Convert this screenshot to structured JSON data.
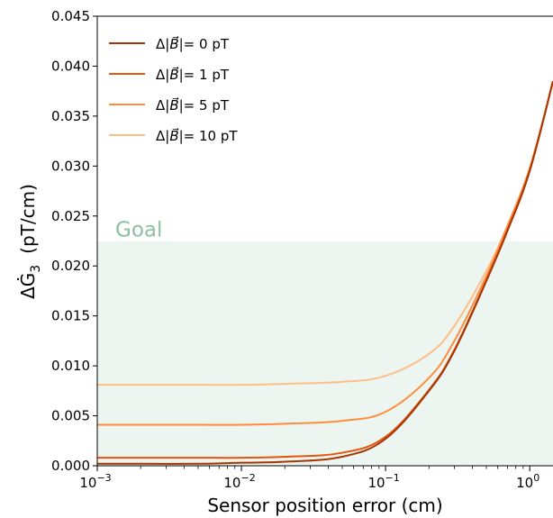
{
  "chart_data": {
    "type": "line",
    "title": "",
    "xlabel": "Sensor position error (cm)",
    "ylabel_main": "ΔĠ",
    "ylabel_sub": "3",
    "ylabel_unit": "(pT/cm)",
    "xscale": "log",
    "xlim": [
      0.001,
      1.45
    ],
    "ylim": [
      0,
      0.045
    ],
    "x_ticks": [
      {
        "value": 0.001,
        "base": "10",
        "exp": "−3"
      },
      {
        "value": 0.01,
        "base": "10",
        "exp": "−2"
      },
      {
        "value": 0.1,
        "base": "10",
        "exp": "−1"
      },
      {
        "value": 1,
        "base": "10",
        "exp": "0"
      }
    ],
    "y_ticks": [
      "0.000",
      "0.005",
      "0.010",
      "0.015",
      "0.020",
      "0.025",
      "0.030",
      "0.035",
      "0.040",
      "0.045"
    ],
    "y_tick_values": [
      0,
      0.005,
      0.01,
      0.015,
      0.02,
      0.025,
      0.03,
      0.035,
      0.04,
      0.045
    ],
    "goal": {
      "label": "Goal",
      "y_max": 0.0225,
      "color": "#2e8b57"
    },
    "legend_position": "upper-left",
    "grid": false,
    "series": [
      {
        "name": "Δ|B⃗|= 0 pT",
        "legend_prefix": "Δ|",
        "legend_symbol": "B⃗",
        "legend_suffix": "|= 0 pT",
        "color": "#a63603",
        "x": [
          0.001,
          0.002,
          0.005,
          0.01,
          0.02,
          0.05,
          0.1,
          0.2,
          0.3,
          0.5,
          0.7,
          1.0,
          1.45
        ],
        "y": [
          0.0002,
          0.0002,
          0.0002,
          0.0003,
          0.0004,
          0.0009,
          0.0027,
          0.0075,
          0.0115,
          0.0185,
          0.0235,
          0.0295,
          0.0385
        ]
      },
      {
        "name": "Δ|B⃗|= 1 pT",
        "legend_prefix": "Δ|",
        "legend_symbol": "B⃗",
        "legend_suffix": "|= 1 pT",
        "color": "#e6550d",
        "x": [
          0.001,
          0.002,
          0.005,
          0.01,
          0.02,
          0.05,
          0.1,
          0.2,
          0.3,
          0.5,
          0.7,
          1.0,
          1.45
        ],
        "y": [
          0.0008,
          0.0008,
          0.0008,
          0.0008,
          0.0009,
          0.0013,
          0.0029,
          0.0076,
          0.0116,
          0.0186,
          0.0236,
          0.0296,
          0.0385
        ]
      },
      {
        "name": "Δ|B⃗|= 5 pT",
        "legend_prefix": "Δ|",
        "legend_symbol": "B⃗",
        "legend_suffix": "|= 5 pT",
        "color": "#fd8d3c",
        "x": [
          0.001,
          0.002,
          0.005,
          0.01,
          0.02,
          0.05,
          0.1,
          0.2,
          0.3,
          0.5,
          0.7,
          1.0,
          1.45
        ],
        "y": [
          0.0041,
          0.0041,
          0.0041,
          0.0041,
          0.0042,
          0.0045,
          0.0054,
          0.0088,
          0.0125,
          0.019,
          0.024,
          0.0298,
          0.0385
        ]
      },
      {
        "name": "Δ|B⃗|= 10 pT",
        "legend_prefix": "Δ|",
        "legend_symbol": "B⃗",
        "legend_suffix": "|= 10 pT",
        "color": "#fdbe85",
        "x": [
          0.001,
          0.002,
          0.005,
          0.01,
          0.02,
          0.05,
          0.1,
          0.2,
          0.3,
          0.5,
          0.7,
          1.0,
          1.45
        ],
        "y": [
          0.0081,
          0.0081,
          0.0081,
          0.0081,
          0.0082,
          0.0084,
          0.009,
          0.0112,
          0.014,
          0.0195,
          0.024,
          0.0297,
          0.0385
        ]
      }
    ]
  }
}
